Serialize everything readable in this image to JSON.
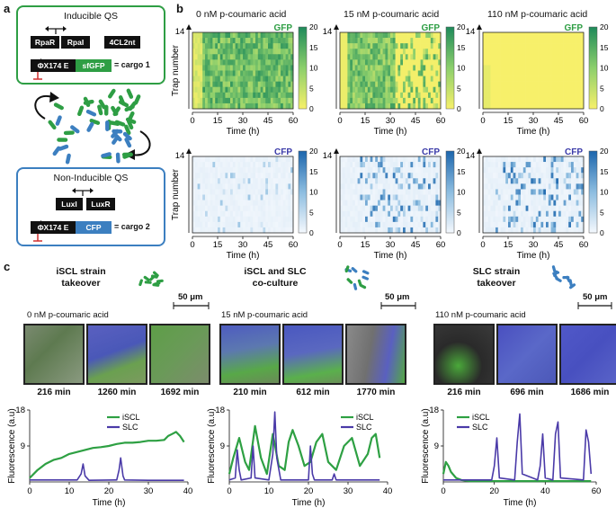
{
  "panel_letters": {
    "a": "a",
    "b": "b",
    "c": "c"
  },
  "panel_a": {
    "inducible": {
      "title": "Inducible QS",
      "genes": [
        "RpaR",
        "RpaI",
        "4CL2nt"
      ],
      "promoter": "ΦX174 E",
      "cargo_gene": "sfGFP",
      "cargo_label": "= cargo 1",
      "color": "#2e9e44"
    },
    "non_inducible": {
      "title": "Non-Inducible QS",
      "genes": [
        "LuxI",
        "LuxR"
      ],
      "promoter": "ΦX174 E",
      "cargo_gene": "CFP",
      "cargo_label": "= cargo 2",
      "color": "#3c7fc0"
    }
  },
  "panel_b": {
    "conditions": [
      "0 nM p-coumaric acid",
      "15 nM p-coumaric acid",
      "110 nM p-coumaric acid"
    ],
    "rows": [
      {
        "channel": "GFP",
        "color": "#2e9e44",
        "scale": [
          "yellow",
          "green"
        ]
      },
      {
        "channel": "CFP",
        "color": "#3a3aa8",
        "scale": [
          "white",
          "blue"
        ]
      }
    ],
    "y_label": "Trap number",
    "y_max_label": "14",
    "x_label": "Time (h)",
    "x_ticks": [
      "0",
      "15",
      "30",
      "45",
      "60"
    ],
    "colorbar_ticks": [
      "0",
      "5",
      "10",
      "15",
      "20"
    ]
  },
  "panel_c": {
    "groups": [
      {
        "title": "iSCL strain\ntakeover",
        "condition": "0 nM p-coumaric acid",
        "scale_bar": "50 μm",
        "frames": [
          "216 min",
          "1260 min",
          "1692 min"
        ],
        "chart_data": {
          "type": "line",
          "xlabel": "Time (h)",
          "ylabel": "Fluorescence (a.u)",
          "xlim": [
            0,
            40
          ],
          "ylim": [
            0,
            18
          ],
          "x_ticks": [
            "0",
            "10",
            "20",
            "30",
            "40"
          ],
          "y_ticks": [
            "9",
            "18"
          ],
          "legend": "top-center",
          "series": [
            {
              "name": "iSCL",
              "color": "#2ea043",
              "x": [
                0,
                2,
                4,
                6,
                8,
                10,
                12,
                14,
                16,
                18,
                20,
                22,
                24,
                26,
                28,
                30,
                32,
                34,
                35,
                36,
                37,
                38,
                39
              ],
              "y": [
                1,
                3,
                4.5,
                5.5,
                6,
                7,
                7.5,
                8,
                8.5,
                8.7,
                9,
                9.5,
                9.8,
                9.8,
                10,
                10.3,
                10.3,
                10.5,
                11.5,
                12,
                12.5,
                11.5,
                10
              ]
            },
            {
              "name": "SLC",
              "color": "#4a3aa8",
              "x": [
                0,
                12,
                13,
                13.5,
                14,
                15,
                22,
                22.6,
                23,
                23.6,
                24,
                30,
                39
              ],
              "y": [
                0.5,
                0.5,
                2,
                4.5,
                1.5,
                0.4,
                0.5,
                3,
                6,
                1.5,
                0.5,
                0.4,
                0.4
              ]
            }
          ]
        }
      },
      {
        "title": "iSCL and SLC\nco-culture",
        "condition": "15 nM p-coumaric acid",
        "scale_bar": "50 μm",
        "frames": [
          "210 min",
          "612 min",
          "1770 min"
        ],
        "chart_data": {
          "type": "line",
          "xlabel": "Time (h)",
          "ylabel": "Fluorescence (a.u)",
          "xlim": [
            0,
            40
          ],
          "ylim": [
            0,
            18
          ],
          "x_ticks": [
            "0",
            "10",
            "20",
            "30",
            "40"
          ],
          "y_ticks": [
            "9",
            "18"
          ],
          "legend": "top-right",
          "series": [
            {
              "name": "iSCL",
              "color": "#2ea043",
              "x": [
                0,
                1,
                2.5,
                4,
                5,
                6.5,
                8,
                9.5,
                11,
                12.5,
                14,
                15,
                16,
                17.5,
                19,
                20.5,
                22,
                23.5,
                25,
                27,
                29,
                31,
                33,
                35,
                36,
                37,
                38
              ],
              "y": [
                2,
                6,
                11,
                5,
                3,
                14,
                6,
                2,
                12,
                4,
                3,
                10,
                13,
                9,
                4,
                5,
                10,
                12,
                5,
                3,
                9,
                11,
                4,
                7,
                11,
                12,
                6
              ]
            },
            {
              "name": "SLC",
              "color": "#4a3aa8",
              "x": [
                0,
                1.5,
                2,
                2.5,
                3,
                5.5,
                6,
                6.5,
                10,
                11,
                11.5,
                12,
                13,
                20,
                20.5,
                21,
                21.5,
                26,
                26.5,
                27,
                38
              ],
              "y": [
                0.5,
                1,
                8,
                3,
                0.5,
                1,
                9,
                1,
                0.5,
                7,
                17.5,
                6,
                0.5,
                0.5,
                9,
                2,
                0.5,
                0.5,
                2,
                0.5,
                0.5
              ]
            }
          ]
        }
      },
      {
        "title": "SLC strain\ntakeover",
        "condition": "110 nM p-coumaric acid",
        "scale_bar": "50 μm",
        "frames": [
          "216 min",
          "696 min",
          "1686 min"
        ],
        "chart_data": {
          "type": "line",
          "xlabel": "Time (h)",
          "ylabel": "Fluorescence (a.u)",
          "xlim": [
            0,
            60
          ],
          "ylim": [
            0,
            18
          ],
          "x_ticks": [
            "0",
            "20",
            "40",
            "60"
          ],
          "y_ticks": [
            "9",
            "18"
          ],
          "legend": "top-left",
          "series": [
            {
              "name": "iSCL",
              "color": "#2ea043",
              "x": [
                0,
                1,
                2,
                3,
                5,
                7,
                10,
                58
              ],
              "y": [
                2,
                5,
                4,
                2.5,
                1,
                0.5,
                0.2,
                0.2
              ]
            },
            {
              "name": "SLC",
              "color": "#4a3aa8",
              "x": [
                0,
                19,
                20,
                21,
                22,
                28,
                29,
                30,
                31,
                37,
                38,
                39,
                40,
                43,
                44,
                45,
                46,
                55,
                56,
                57,
                58
              ],
              "y": [
                0.5,
                0.5,
                4,
                11,
                1,
                0.5,
                10,
                17,
                2,
                0.5,
                4,
                12,
                1,
                0.5,
                12,
                15,
                1,
                0.5,
                13,
                10,
                2
              ]
            }
          ]
        }
      }
    ]
  }
}
